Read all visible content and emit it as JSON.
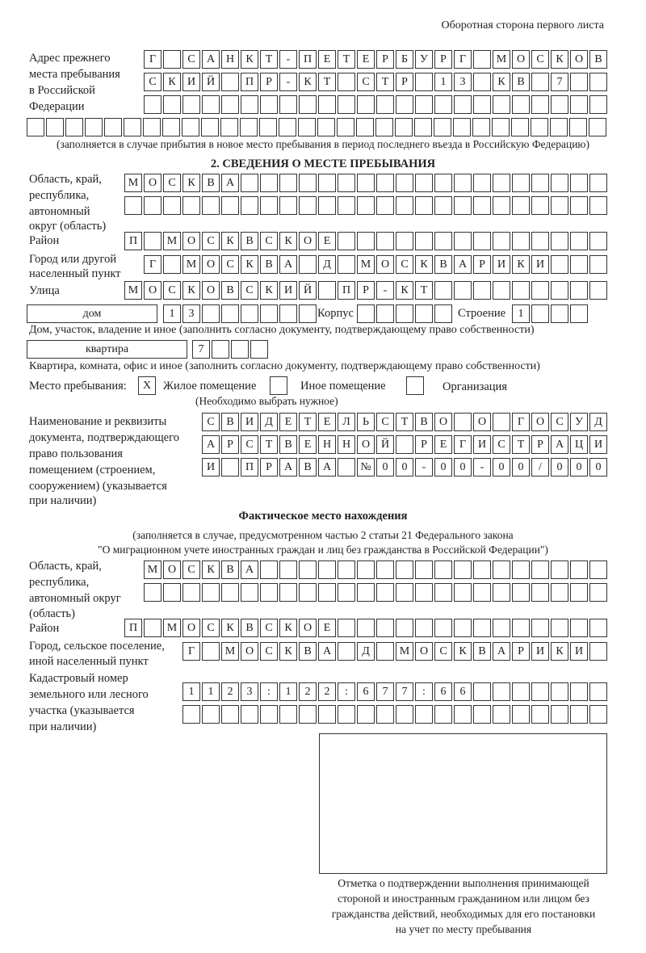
{
  "header": {
    "page_side": "Оборотная сторона первого листа"
  },
  "prev_address": {
    "label": [
      "Адрес прежнего",
      "места пребывания",
      "в Российской",
      "Федерации"
    ],
    "rows": [
      "Г САНКТ-ПЕТЕРБУРГ МОСКОВ",
      "СКИЙ ПР-КТ СТР 13 КВ 7  ",
      "                        ",
      "                              "
    ],
    "note": "(заполняется в случае прибытия в новое место пребывания в период последнего въезда в Российскую Федерацию)"
  },
  "section2": {
    "title": "2. СВЕДЕНИЯ О МЕСТЕ ПРЕБЫВАНИЯ",
    "region_label": [
      "Область, край,",
      "республика,",
      "автономный",
      "округ (область)"
    ],
    "region_rows": [
      "МОСКВА                   ",
      "                         "
    ],
    "district_label": "Район",
    "district_row": "П МОСКВСКОЕ              ",
    "city_label": [
      "Город или другой",
      "населенный пункт"
    ],
    "city_row": "Г МОСКВА Д МОСКВАРИКИ   ",
    "street_label": "Улица",
    "street_row": "МОСКОВСКИЙ ПР-КТ         ",
    "house_type": "дом",
    "house_row": "13      ",
    "korpus_label": "Корпус",
    "korpus_row": "     ",
    "building_label": "Строение",
    "building_row": "1   ",
    "house_note": "Дом, участок, владение и иное (заполнить согласно документу, подтверждающему право собственности)",
    "flat_type": "квартира",
    "flat_row": "7   ",
    "flat_note": "Квартира, комната, офис и иное (заполнить согласно документу, подтверждающему право собственности)",
    "stay_place_label": "Место пребывания:",
    "stay_options": [
      {
        "label": "Жилое помещение",
        "mark": "Х"
      },
      {
        "label": "Иное помещение",
        "mark": ""
      },
      {
        "label": "Организация",
        "mark": ""
      }
    ],
    "stay_note": "(Необходимо выбрать нужное)",
    "document_label": [
      "Наименование и реквизиты",
      "документа, подтверждающего",
      "право пользования",
      "помещением (строением,",
      "сооружением) (указывается",
      "при наличии)"
    ],
    "document_rows": [
      "СВИДЕТЕЛЬСТВО О ГОСУД",
      "АРСТВЕННОЙ РЕГИСТРАЦИ",
      "И ПРАВА №00-00-00/000"
    ]
  },
  "actual": {
    "title": "Фактическое место нахождения",
    "note1": "(заполняется в случае, предусмотренном частью 2 статьи 21 Федерального закона",
    "note2": "\"О миграционном учете иностранных граждан и лиц без гражданства в Российской Федерации\")",
    "region_label": [
      "Область, край,",
      "республика,",
      "автономный округ",
      "(область)"
    ],
    "region_rows": [
      "МОСКВА                  ",
      "                        "
    ],
    "district_label": "Район",
    "district_row": "П МОСКВСКОЕ              ",
    "city_label": [
      "Город, сельское поселение,",
      "иной населенный пункт"
    ],
    "city_row": "Г МОСКВА Д МОСКВАРИКИ ",
    "cadastre_label": [
      "Кадастровый номер",
      "земельного или лесного",
      "участка (указывается",
      "при наличии)"
    ],
    "cadastre_rows": [
      "1123:122:677:66       ",
      "                      "
    ]
  },
  "stamp": {
    "caption": [
      "Отметка о подтверждении выполнения принимающей",
      "стороной и иностранным гражданином или лицом без",
      "гражданства действий, необходимых для его постановки",
      "на учет по месту пребывания"
    ]
  }
}
